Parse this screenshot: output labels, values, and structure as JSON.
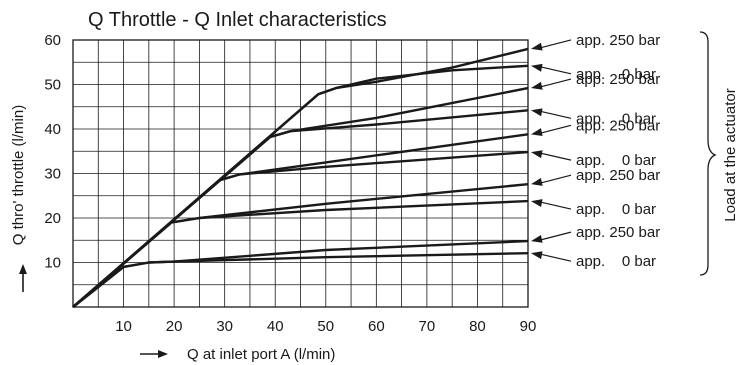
{
  "chart_data": {
    "type": "line",
    "title": "Q Throttle - Q Inlet  characteristics",
    "xlabel": "Q at inlet port A (l/min)",
    "ylabel": "Q thro' throttle (l/min)",
    "xlim": [
      0,
      90
    ],
    "ylim": [
      0,
      60
    ],
    "xticks": [
      10,
      20,
      30,
      40,
      50,
      60,
      70,
      80,
      90
    ],
    "yticks": [
      10,
      20,
      30,
      40,
      50,
      60
    ],
    "x_tick_labels": [
      "10",
      "20",
      "30",
      "40",
      "50",
      "60",
      "70",
      "80",
      "90"
    ],
    "y_tick_labels": [
      "10",
      "20",
      "30",
      "40",
      "50",
      "60"
    ],
    "grid": true,
    "line_color": "#1a1a1a",
    "side_label": "Load at the actuator",
    "series": [
      {
        "label": "app. 250 bar",
        "points": [
          [
            0,
            0
          ],
          [
            10,
            9
          ],
          [
            15,
            10
          ],
          [
            20,
            10.2
          ],
          [
            50,
            12.8
          ],
          [
            90,
            14.8
          ]
        ]
      },
      {
        "label": "app.    0 bar",
        "points": [
          [
            0,
            0
          ],
          [
            10,
            9
          ],
          [
            15,
            10
          ],
          [
            20,
            10.2
          ],
          [
            50,
            11.2
          ],
          [
            90,
            12.1
          ]
        ]
      },
      {
        "label": "app. 250 bar",
        "points": [
          [
            0,
            0
          ],
          [
            19.5,
            19
          ],
          [
            25,
            20
          ],
          [
            50,
            23.2
          ],
          [
            90,
            27.6
          ]
        ]
      },
      {
        "label": "app.    0 bar",
        "points": [
          [
            0,
            0
          ],
          [
            19.5,
            19
          ],
          [
            25,
            20
          ],
          [
            50,
            21.8
          ],
          [
            90,
            23.8
          ]
        ]
      },
      {
        "label": "app. 250 bar",
        "points": [
          [
            0,
            0
          ],
          [
            29,
            28.5
          ],
          [
            33,
            29.8
          ],
          [
            50,
            32.5
          ],
          [
            90,
            38.8
          ]
        ]
      },
      {
        "label": "app.    0 bar",
        "points": [
          [
            0,
            0
          ],
          [
            29,
            28.5
          ],
          [
            33,
            29.8
          ],
          [
            50,
            31.5
          ],
          [
            90,
            34.8
          ]
        ]
      },
      {
        "label": "app. 250 bar",
        "points": [
          [
            0,
            0
          ],
          [
            39,
            38.2
          ],
          [
            43,
            39.5
          ],
          [
            60,
            42.5
          ],
          [
            90,
            49.2
          ]
        ]
      },
      {
        "label": "app.    0 bar",
        "points": [
          [
            0,
            0
          ],
          [
            39,
            38.2
          ],
          [
            43,
            39.5
          ],
          [
            60,
            41
          ],
          [
            90,
            44.2
          ]
        ]
      },
      {
        "label": "app. 250 bar",
        "points": [
          [
            0,
            0
          ],
          [
            48.5,
            47.8
          ],
          [
            52,
            49.2
          ],
          [
            60,
            50.6
          ],
          [
            75,
            53.8
          ],
          [
            90,
            58
          ]
        ]
      },
      {
        "label": "app.    0 bar",
        "points": [
          [
            0,
            0
          ],
          [
            48.5,
            47.8
          ],
          [
            52,
            49.2
          ],
          [
            60,
            51.3
          ],
          [
            75,
            53.2
          ],
          [
            90,
            54.2
          ]
        ]
      }
    ]
  }
}
